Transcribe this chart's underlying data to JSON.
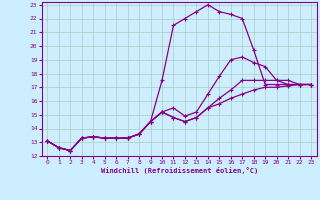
{
  "xlabel": "Windchill (Refroidissement éolien,°C)",
  "bg_color": "#cceeff",
  "grid_color": "#aaccbb",
  "line_color": "#880088",
  "xlim": [
    -0.5,
    23.5
  ],
  "ylim": [
    12,
    23.2
  ],
  "xticks": [
    0,
    1,
    2,
    3,
    4,
    5,
    6,
    7,
    8,
    9,
    10,
    11,
    12,
    13,
    14,
    15,
    16,
    17,
    18,
    19,
    20,
    21,
    22,
    23
  ],
  "yticks": [
    12,
    13,
    14,
    15,
    16,
    17,
    18,
    19,
    20,
    21,
    22,
    23
  ],
  "series": [
    [
      13.1,
      12.6,
      12.4,
      13.3,
      13.4,
      13.3,
      13.3,
      13.3,
      13.6,
      14.5,
      17.5,
      21.5,
      22.0,
      22.5,
      23.0,
      22.5,
      22.3,
      22.0,
      19.7,
      17.2,
      17.2,
      17.2,
      17.2,
      17.2
    ],
    [
      13.1,
      12.6,
      12.4,
      13.3,
      13.4,
      13.3,
      13.3,
      13.3,
      13.6,
      14.5,
      15.2,
      15.5,
      14.9,
      15.2,
      16.5,
      17.8,
      19.0,
      19.2,
      18.8,
      18.5,
      17.5,
      17.2,
      17.2,
      17.2
    ],
    [
      13.1,
      12.6,
      12.4,
      13.3,
      13.4,
      13.3,
      13.3,
      13.3,
      13.6,
      14.5,
      15.2,
      14.8,
      14.5,
      14.8,
      15.5,
      16.2,
      16.8,
      17.5,
      17.5,
      17.5,
      17.5,
      17.5,
      17.2,
      17.2
    ],
    [
      13.1,
      12.6,
      12.4,
      13.3,
      13.4,
      13.3,
      13.3,
      13.3,
      13.6,
      14.5,
      15.2,
      14.8,
      14.5,
      14.8,
      15.5,
      15.8,
      16.2,
      16.5,
      16.8,
      17.0,
      17.0,
      17.1,
      17.2,
      17.2
    ]
  ]
}
